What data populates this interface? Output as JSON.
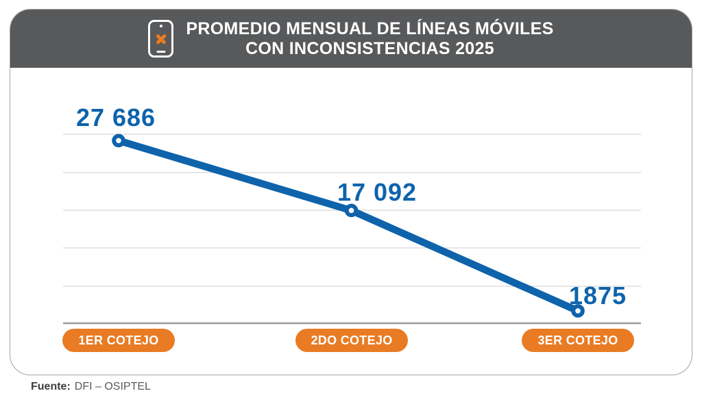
{
  "header": {
    "title_line1": "PROMEDIO MENSUAL DE LÍNEAS MÓVILES",
    "title_line2": "CON INCONSISTENCIAS 2025",
    "icon": "phone-x-icon"
  },
  "chart_data": {
    "type": "line",
    "title": "PROMEDIO MENSUAL DE LÍNEAS MÓVILES CON INCONSISTENCIAS 2025",
    "categories": [
      "1ER COTEJO",
      "2DO COTEJO",
      "3ER COTEJO"
    ],
    "values": [
      27686,
      17092,
      1875
    ],
    "point_labels": [
      "27 686",
      "17 092",
      "1875"
    ],
    "xlabel": "",
    "ylabel": "",
    "ylim": [
      0,
      30000
    ],
    "grid": true,
    "gridline_count": 5,
    "legend_position": "none",
    "line_color": "#0e63ab",
    "marker_style": "open-circle",
    "category_pill_color": "#e87b23"
  },
  "footer": {
    "source_label": "Fuente:",
    "source_value": "DFI – OSIPTEL"
  },
  "colors": {
    "header_bg": "#58595b",
    "accent_blue": "#0e63ab",
    "accent_orange": "#e87b23"
  }
}
